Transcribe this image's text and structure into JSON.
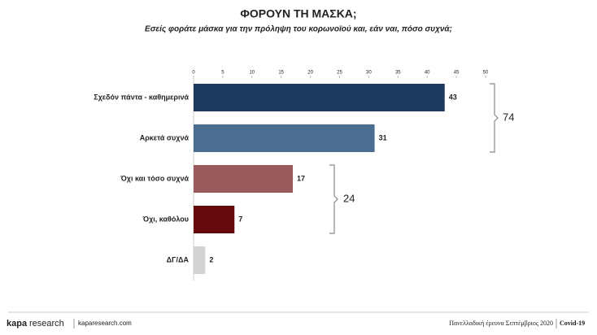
{
  "chart_data": {
    "type": "hbar",
    "title": "ΦΟΡΟΥΝ ΤΗ ΜΑΣΚΑ;",
    "subtitle": "Εσείς φοράτε μάσκα για την πρόληψη του κορωνοϊού και, εάν ναι, πόσο συχνά;",
    "categories": [
      "Σχεδόν πάντα - καθημερινά",
      "Αρκετά συχνά",
      "Όχι και τόσο συχνά",
      "Όχι, καθόλου",
      "ΔΓ/ΔΑ"
    ],
    "values": [
      43,
      31,
      17,
      7,
      2
    ],
    "colors": [
      "#1c3a5e",
      "#4b6d8f",
      "#9a5b5f",
      "#650b0e",
      "#d3d3d3"
    ],
    "xlim": [
      0,
      50
    ],
    "xticks": [
      0,
      5,
      10,
      15,
      20,
      25,
      30,
      35,
      40,
      45,
      50
    ],
    "annotations": [
      "74",
      "24"
    ]
  },
  "footer": {
    "logo_a": "kapa",
    "logo_b": "research",
    "site": "kaparesearch.com",
    "survey": "Πανελλαδική έρευνα Σεπτέμβριος 2020",
    "topic": "Covid-19"
  }
}
